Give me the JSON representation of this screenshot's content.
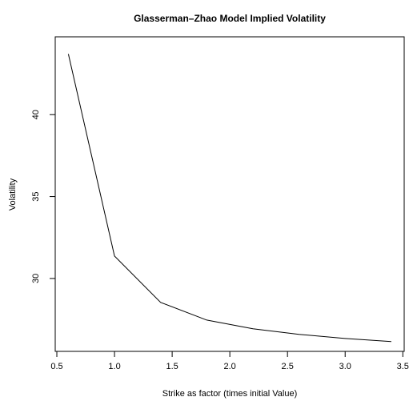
{
  "chart_data": {
    "type": "line",
    "title": "Glasserman–Zhao Model Implied Volatility",
    "x_label": "Strike as factor (times initial Value)",
    "y_label": "Volatility",
    "x": [
      0.6,
      1.0,
      1.4,
      1.8,
      2.2,
      2.6,
      3.0,
      3.4
    ],
    "series": [
      {
        "name": "Volatility",
        "color": "#000000",
        "values": [
          43.7,
          31.37,
          28.54,
          27.46,
          26.93,
          26.59,
          26.34,
          26.15
        ]
      }
    ],
    "xlim": [
      0.486,
      3.512
    ],
    "ylim": [
      25.55,
      44.75
    ],
    "xticks": [
      0.5,
      1.0,
      1.5,
      2.0,
      2.5,
      3.0,
      3.5
    ],
    "yticks": [
      30,
      35,
      40
    ],
    "grid": false
  }
}
